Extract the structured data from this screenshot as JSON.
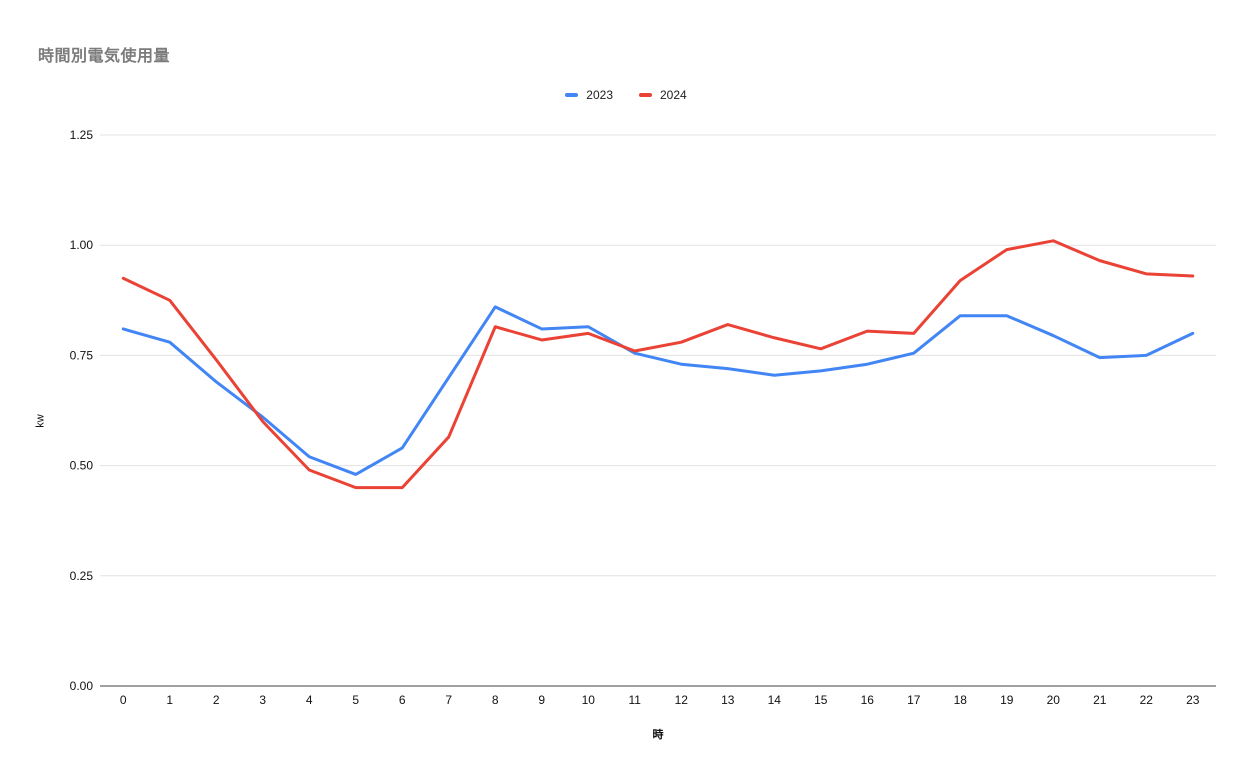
{
  "chart_data": {
    "type": "line",
    "title": "時間別電気使用量",
    "xlabel": "時",
    "ylabel": "kw",
    "x": [
      0,
      1,
      2,
      3,
      4,
      5,
      6,
      7,
      8,
      9,
      10,
      11,
      12,
      13,
      14,
      15,
      16,
      17,
      18,
      19,
      20,
      21,
      22,
      23
    ],
    "series": [
      {
        "name": "2023",
        "color": "#4285F4",
        "values": [
          0.81,
          0.78,
          0.69,
          0.61,
          0.52,
          0.48,
          0.54,
          0.7,
          0.86,
          0.81,
          0.815,
          0.755,
          0.73,
          0.72,
          0.705,
          0.715,
          0.73,
          0.755,
          0.84,
          0.84,
          0.795,
          0.745,
          0.75,
          0.8
        ]
      },
      {
        "name": "2024",
        "color": "#EA4335",
        "values": [
          0.925,
          0.875,
          0.74,
          0.6,
          0.49,
          0.45,
          0.45,
          0.565,
          0.815,
          0.785,
          0.8,
          0.76,
          0.78,
          0.82,
          0.79,
          0.765,
          0.805,
          0.8,
          0.92,
          0.99,
          1.01,
          0.965,
          0.935,
          0.93
        ]
      }
    ],
    "ylim": [
      0,
      1.25
    ],
    "ytick_step": 0.25,
    "ytick_format_decimals": 2,
    "grid": true,
    "legend_position": "top-center",
    "line_width": 3,
    "gridline_color": "#e3e3e3",
    "axis_line_color": "#424242",
    "tick_label_color": "#111111"
  }
}
